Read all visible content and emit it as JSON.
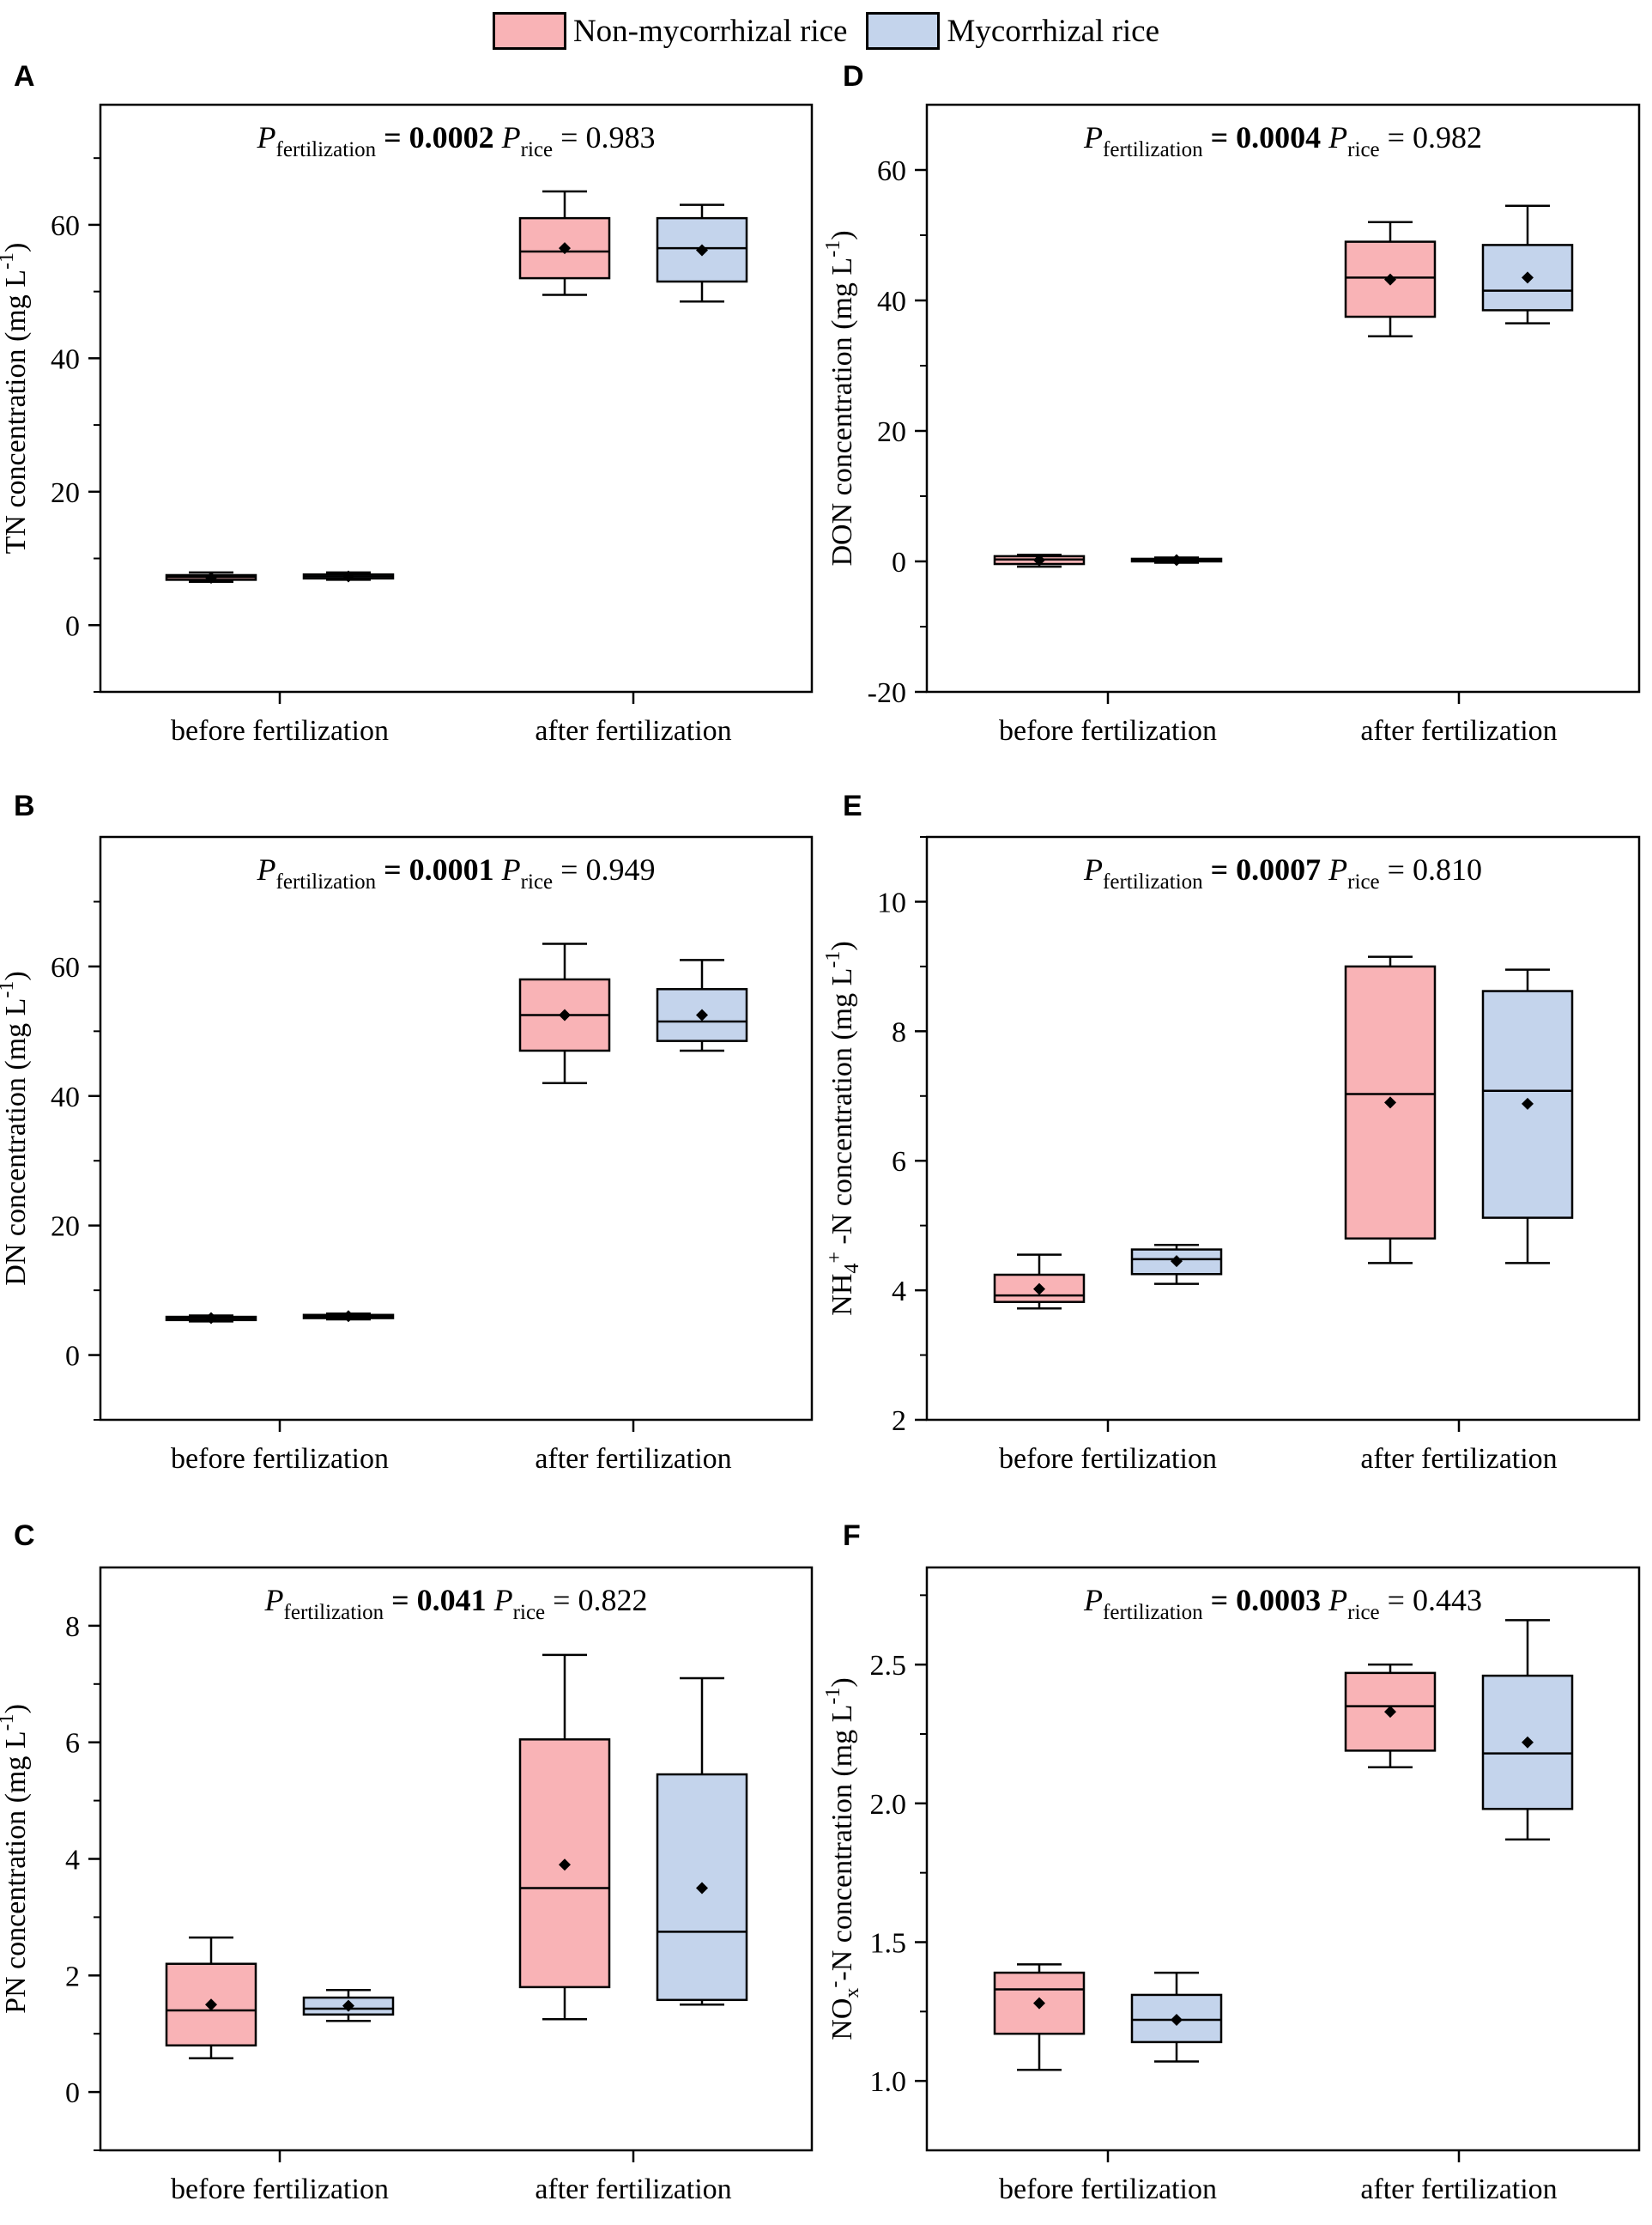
{
  "legend": {
    "items": [
      {
        "label": "Non-mycorrhizal rice",
        "color": "#f9b3b6"
      },
      {
        "label": "Mycorrhizal rice",
        "color": "#c4d4ec"
      }
    ]
  },
  "chart_data": [
    {
      "panel": "A",
      "type": "box",
      "annotation": {
        "p_fert_label": "P",
        "p_fert_sub": "fertilization",
        "p_fert_value": "= 0.0002",
        "p_rice_label": "P",
        "p_rice_sub": "rice",
        "p_rice_value": "= 0.983"
      },
      "ylabel": {
        "main": "TN concentration (mg L",
        "sup": "-1",
        "tail": ")"
      },
      "ylim": [
        -10,
        78
      ],
      "yticks": [
        0,
        20,
        40,
        60
      ],
      "yminor": [
        -10,
        10,
        30,
        50,
        70
      ],
      "categories": [
        "before fertilization",
        "after fertilization"
      ],
      "series": [
        {
          "name": "Non-mycorrhizal rice",
          "boxes": [
            {
              "min": 6.5,
              "q1": 6.8,
              "median": 7.2,
              "q3": 7.5,
              "max": 7.9,
              "mean": 7.1
            },
            {
              "min": 49.5,
              "q1": 52.0,
              "median": 56.0,
              "q3": 61.0,
              "max": 65.0,
              "mean": 56.5
            }
          ]
        },
        {
          "name": "Mycorrhizal rice",
          "boxes": [
            {
              "min": 6.8,
              "q1": 7.0,
              "median": 7.3,
              "q3": 7.6,
              "max": 7.9,
              "mean": 7.3
            },
            {
              "min": 48.5,
              "q1": 51.5,
              "median": 56.5,
              "q3": 61.0,
              "max": 63.0,
              "mean": 56.2
            }
          ]
        }
      ]
    },
    {
      "panel": "B",
      "type": "box",
      "annotation": {
        "p_fert_label": "P",
        "p_fert_sub": "fertilization",
        "p_fert_value": "= 0.0001",
        "p_rice_label": "P",
        "p_rice_sub": "rice",
        "p_rice_value": "= 0.949"
      },
      "ylabel": {
        "main": "DN concentration (mg L",
        "sup": "-1",
        "tail": ")"
      },
      "ylim": [
        -10,
        80
      ],
      "yticks": [
        0,
        20,
        40,
        60
      ],
      "yminor": [
        -10,
        10,
        30,
        50,
        70
      ],
      "categories": [
        "before fertilization",
        "after fertilization"
      ],
      "series": [
        {
          "name": "Non-mycorrhizal rice",
          "boxes": [
            {
              "min": 5.2,
              "q1": 5.4,
              "median": 5.7,
              "q3": 5.9,
              "max": 6.1,
              "mean": 5.7
            },
            {
              "min": 42.0,
              "q1": 47.0,
              "median": 52.5,
              "q3": 58.0,
              "max": 63.5,
              "mean": 52.5
            }
          ]
        },
        {
          "name": "Mycorrhizal rice",
          "boxes": [
            {
              "min": 5.5,
              "q1": 5.7,
              "median": 6.0,
              "q3": 6.2,
              "max": 6.4,
              "mean": 6.0
            },
            {
              "min": 47.0,
              "q1": 48.5,
              "median": 51.5,
              "q3": 56.5,
              "max": 61.0,
              "mean": 52.5
            }
          ]
        }
      ]
    },
    {
      "panel": "C",
      "type": "box",
      "annotation": {
        "p_fert_label": "P",
        "p_fert_sub": "fertilization",
        "p_fert_value": "= 0.041",
        "p_rice_label": "P",
        "p_rice_sub": "rice",
        "p_rice_value": "= 0.822"
      },
      "ylabel": {
        "main": "PN concentration (mg L",
        "sup": "-1",
        "tail": ")"
      },
      "ylim": [
        -1,
        9
      ],
      "yticks": [
        0,
        2,
        4,
        6,
        8
      ],
      "yminor": [
        -1,
        1,
        3,
        5,
        7
      ],
      "categories": [
        "before fertilization",
        "after fertilization"
      ],
      "series": [
        {
          "name": "Non-mycorrhizal rice",
          "boxes": [
            {
              "min": 0.58,
              "q1": 0.8,
              "median": 1.4,
              "q3": 2.2,
              "max": 2.65,
              "mean": 1.5
            },
            {
              "min": 1.25,
              "q1": 1.8,
              "median": 3.5,
              "q3": 6.05,
              "max": 7.5,
              "mean": 3.9
            }
          ]
        },
        {
          "name": "Mycorrhizal rice",
          "boxes": [
            {
              "min": 1.22,
              "q1": 1.33,
              "median": 1.43,
              "q3": 1.62,
              "max": 1.75,
              "mean": 1.48
            },
            {
              "min": 1.5,
              "q1": 1.58,
              "median": 2.75,
              "q3": 5.45,
              "max": 7.1,
              "mean": 3.5
            }
          ]
        }
      ]
    },
    {
      "panel": "D",
      "type": "box",
      "annotation": {
        "p_fert_label": "P",
        "p_fert_sub": "fertilization",
        "p_fert_value": "= 0.0004",
        "p_rice_label": "P",
        "p_rice_sub": "rice",
        "p_rice_value": "= 0.982"
      },
      "ylabel": {
        "main": "DON concentration (mg L",
        "sup": "-1",
        "tail": ")"
      },
      "ylim": [
        -20,
        70
      ],
      "yticks": [
        -20,
        0,
        20,
        40,
        60
      ],
      "yminor": [
        -10,
        10,
        30,
        50
      ],
      "categories": [
        "before fertilization",
        "after fertilization"
      ],
      "series": [
        {
          "name": "Non-mycorrhizal rice",
          "boxes": [
            {
              "min": -0.8,
              "q1": -0.4,
              "median": 0.3,
              "q3": 0.8,
              "max": 1.0,
              "mean": 0.2
            },
            {
              "min": 34.5,
              "q1": 37.5,
              "median": 43.5,
              "q3": 49.0,
              "max": 52.0,
              "mean": 43.2
            }
          ]
        },
        {
          "name": "Mycorrhizal rice",
          "boxes": [
            {
              "min": -0.2,
              "q1": 0.0,
              "median": 0.2,
              "q3": 0.4,
              "max": 0.6,
              "mean": 0.2
            },
            {
              "min": 36.5,
              "q1": 38.5,
              "median": 41.5,
              "q3": 48.5,
              "max": 54.5,
              "mean": 43.5
            }
          ]
        }
      ]
    },
    {
      "panel": "E",
      "type": "box",
      "annotation": {
        "p_fert_label": "P",
        "p_fert_sub": "fertilization",
        "p_fert_value": "= 0.0007",
        "p_rice_label": "P",
        "p_rice_sub": "rice",
        "p_rice_value": "= 0.810"
      },
      "ylabel": {
        "main": "NH",
        "sub": "4",
        "sup": "+",
        "rest": " -N concentration (mg L",
        "sup2": "-1",
        "tail": ")"
      },
      "ylim": [
        2,
        11
      ],
      "yticks": [
        2,
        4,
        6,
        8,
        10
      ],
      "yminor": [
        3,
        5,
        7,
        9,
        11
      ],
      "categories": [
        "before fertilization",
        "after fertilization"
      ],
      "series": [
        {
          "name": "Non-mycorrhizal rice",
          "boxes": [
            {
              "min": 3.72,
              "q1": 3.82,
              "median": 3.92,
              "q3": 4.24,
              "max": 4.55,
              "mean": 4.02
            },
            {
              "min": 4.42,
              "q1": 4.8,
              "median": 7.03,
              "q3": 9.0,
              "max": 9.15,
              "mean": 6.9
            }
          ]
        },
        {
          "name": "Mycorrhizal rice",
          "boxes": [
            {
              "min": 4.1,
              "q1": 4.25,
              "median": 4.48,
              "q3": 4.63,
              "max": 4.7,
              "mean": 4.45
            },
            {
              "min": 4.42,
              "q1": 5.12,
              "median": 7.08,
              "q3": 8.62,
              "max": 8.95,
              "mean": 6.88
            }
          ]
        }
      ]
    },
    {
      "panel": "F",
      "type": "box",
      "annotation": {
        "p_fert_label": "P",
        "p_fert_sub": "fertilization",
        "p_fert_value": "= 0.0003",
        "p_rice_label": "P",
        "p_rice_sub": "rice",
        "p_rice_value": "= 0.443"
      },
      "ylabel": {
        "main": "NO",
        "sub": "x",
        "sup": "-",
        "rest": "-N concentration (mg L",
        "sup2": "-1",
        "tail": ")"
      },
      "ylim": [
        0.75,
        2.85
      ],
      "yticks": [
        1.0,
        1.5,
        2.0,
        2.5
      ],
      "yticklabels": [
        "1.0",
        "1.5",
        "2.0",
        "2.5"
      ],
      "yminor": [
        1.25,
        1.75,
        2.25,
        2.75
      ],
      "categories": [
        "before fertilization",
        "after fertilization"
      ],
      "series": [
        {
          "name": "Non-mycorrhizal rice",
          "boxes": [
            {
              "min": 1.04,
              "q1": 1.17,
              "median": 1.33,
              "q3": 1.39,
              "max": 1.42,
              "mean": 1.28
            },
            {
              "min": 2.13,
              "q1": 2.19,
              "median": 2.35,
              "q3": 2.47,
              "max": 2.5,
              "mean": 2.33
            }
          ]
        },
        {
          "name": "Mycorrhizal rice",
          "boxes": [
            {
              "min": 1.07,
              "q1": 1.14,
              "median": 1.22,
              "q3": 1.31,
              "max": 1.39,
              "mean": 1.22
            },
            {
              "min": 1.87,
              "q1": 1.98,
              "median": 2.18,
              "q3": 2.46,
              "max": 2.66,
              "mean": 2.22
            }
          ]
        }
      ]
    }
  ]
}
